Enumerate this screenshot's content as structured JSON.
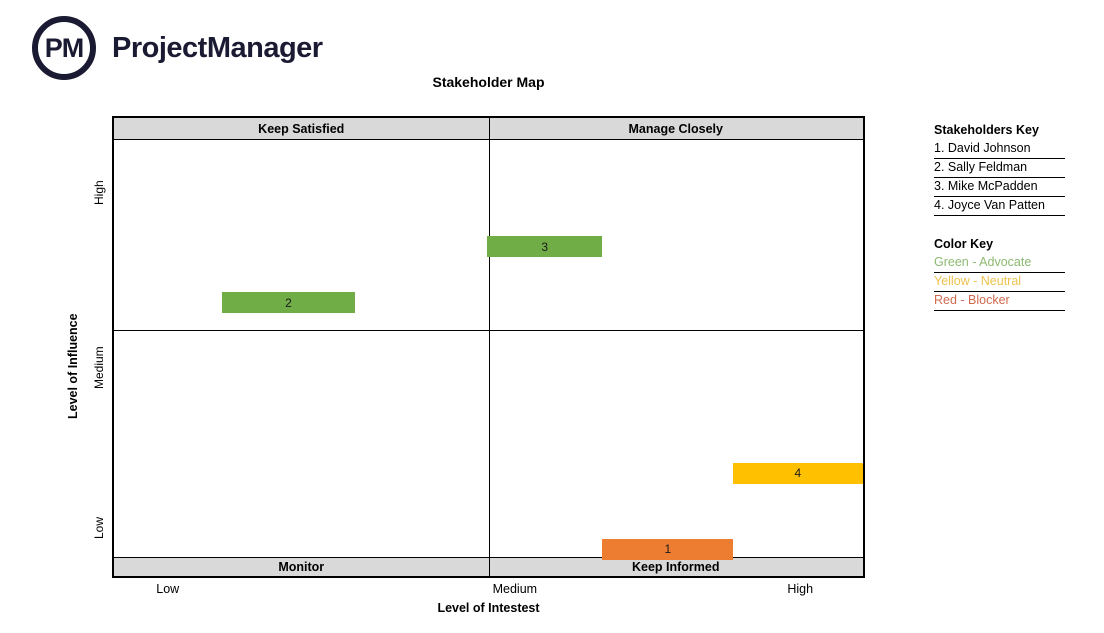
{
  "brand": {
    "monogram": "PM",
    "name": "ProjectManager"
  },
  "chart_data": {
    "type": "scatter",
    "title": "Stakeholder Map",
    "xlabel": "Level of Intestest",
    "ylabel": "Level of Influence",
    "x_ticks": [
      {
        "label": "Low",
        "pos_pct": 7.4
      },
      {
        "label": "Medium",
        "pos_pct": 53.5
      },
      {
        "label": "High",
        "pos_pct": 91.4
      }
    ],
    "y_ticks": [
      {
        "label": "High",
        "pos_pct": 16.7
      },
      {
        "label": "Medium",
        "pos_pct": 54.5
      },
      {
        "label": "Low",
        "pos_pct": 89.2
      }
    ],
    "quadrant_headers": {
      "top_left": "Keep Satisfied",
      "top_right": "Manage Closely",
      "bottom_left": "Monitor",
      "bottom_right": "Keep Informed"
    },
    "points": [
      {
        "label": "1",
        "stakeholder": "David Johnson",
        "status": "Blocker",
        "interest": "medium-high",
        "influence": "low",
        "color": "#ED7D31",
        "geom": {
          "left_pct": 65.2,
          "width_pct": 17.5,
          "top_pct": 91.9,
          "height_pct": 4.6
        }
      },
      {
        "label": "2",
        "stakeholder": "Sally Feldman",
        "status": "Advocate",
        "interest": "low-medium",
        "influence": "medium-high",
        "color": "#70AD47",
        "geom": {
          "left_pct": 14.4,
          "width_pct": 17.8,
          "top_pct": 38.0,
          "height_pct": 4.6
        }
      },
      {
        "label": "3",
        "stakeholder": "Mike McPadden",
        "status": "Advocate",
        "interest": "medium",
        "influence": "high",
        "color": "#70AD47",
        "geom": {
          "left_pct": 49.8,
          "width_pct": 15.4,
          "top_pct": 25.8,
          "height_pct": 4.6
        }
      },
      {
        "label": "4",
        "stakeholder": "Joyce Van Patten",
        "status": "Neutral",
        "interest": "high",
        "influence": "low-medium",
        "color": "#FFC000",
        "geom": {
          "left_pct": 82.6,
          "width_pct": 17.4,
          "top_pct": 75.3,
          "height_pct": 4.6
        }
      }
    ]
  },
  "stakeholders_key": {
    "title": "Stakeholders Key",
    "items": [
      "1. David Johnson",
      "2. Sally Feldman",
      "3. Mike McPadden",
      "4. Joyce Van Patten"
    ]
  },
  "color_key": {
    "title": "Color Key",
    "items": [
      {
        "label": "Green - Advocate",
        "color": "#8CBA70"
      },
      {
        "label": "Yellow - Neutral",
        "color": "#EDC24F"
      },
      {
        "label": "Red - Blocker",
        "color": "#D06A4E"
      }
    ]
  }
}
